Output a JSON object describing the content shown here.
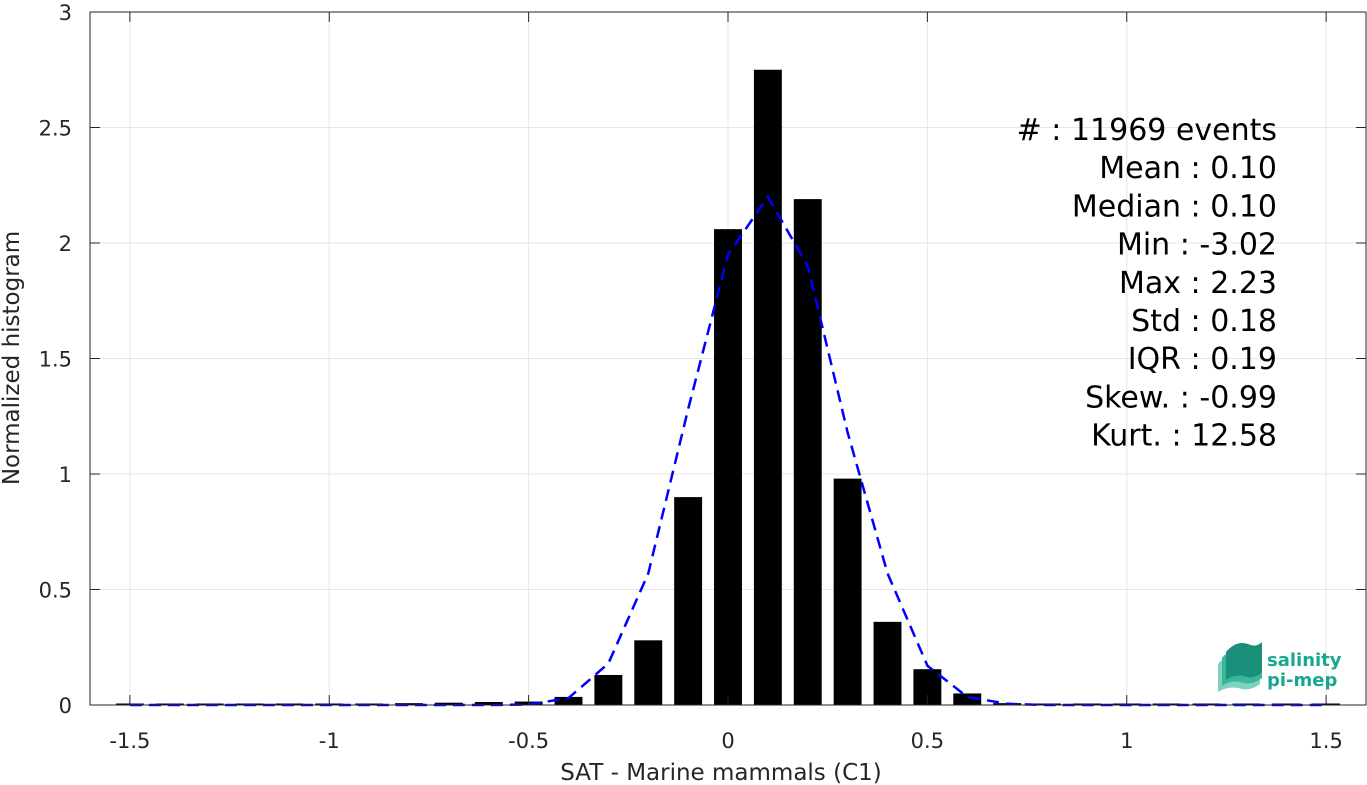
{
  "chart_data": {
    "type": "bar",
    "xlabel": "SAT - Marine mammals (C1)",
    "ylabel": "Normalized histogram",
    "xlim": [
      -1.6,
      1.6
    ],
    "ylim": [
      0,
      3
    ],
    "grid": true,
    "xticks": [
      -1.5,
      -1,
      -0.5,
      0,
      0.5,
      1,
      1.5
    ],
    "xtick_labels": [
      "-1.5",
      "-1",
      "-0.5",
      "0",
      "0.5",
      "1",
      "1.5"
    ],
    "yticks": [
      0,
      0.5,
      1,
      1.5,
      2,
      2.5,
      3
    ],
    "ytick_labels": [
      "0",
      "0.5",
      "1",
      "1.5",
      "2",
      "2.5",
      "3"
    ],
    "bar_width": 0.07,
    "bars": {
      "x": [
        -1.5,
        -1.4,
        -1.3,
        -1.2,
        -1.1,
        -1.0,
        -0.9,
        -0.8,
        -0.7,
        -0.6,
        -0.5,
        -0.4,
        -0.3,
        -0.2,
        -0.1,
        0.0,
        0.1,
        0.2,
        0.3,
        0.4,
        0.5,
        0.6,
        0.7,
        0.8,
        0.9,
        1.0,
        1.1,
        1.2,
        1.3,
        1.4,
        1.5
      ],
      "values": [
        0.005,
        0.002,
        0.002,
        0.002,
        0.002,
        0.003,
        0.005,
        0.008,
        0.01,
        0.013,
        0.015,
        0.035,
        0.13,
        0.28,
        0.9,
        2.06,
        2.75,
        2.19,
        0.98,
        0.36,
        0.155,
        0.05,
        0.008,
        0.003,
        0.002,
        0.002,
        0.002,
        0.002,
        0.002,
        0.002,
        0.003
      ],
      "color": "#000000"
    },
    "fit_curve": {
      "style": "dashed",
      "color": "#0000ff",
      "x": [
        -1.5,
        -1.4,
        -1.3,
        -1.2,
        -1.1,
        -1.0,
        -0.9,
        -0.8,
        -0.7,
        -0.6,
        -0.5,
        -0.4,
        -0.3,
        -0.2,
        -0.1,
        0.0,
        0.1,
        0.2,
        0.3,
        0.4,
        0.5,
        0.6,
        0.7,
        0.8,
        0.9,
        1.0,
        1.1,
        1.2,
        1.3,
        1.4,
        1.5
      ],
      "y": [
        0,
        0,
        0,
        0,
        0,
        0,
        0,
        0,
        0,
        0,
        0.002,
        0.03,
        0.18,
        0.57,
        1.28,
        1.95,
        2.2,
        1.9,
        1.18,
        0.57,
        0.17,
        0.035,
        0.005,
        0,
        0,
        0,
        0,
        0,
        0,
        0,
        0
      ]
    },
    "annotation": [
      "#  : 11969 events",
      "Mean : 0.10",
      "Median : 0.10",
      "Min : -3.02",
      "Max : 2.23",
      "Std : 0.18",
      "IQR : 0.19",
      "Skew. : -0.99",
      "Kurt. : 12.58"
    ]
  },
  "logo": {
    "line1": "salinity",
    "line2": "pi-mep",
    "color": "#1aa78f"
  }
}
